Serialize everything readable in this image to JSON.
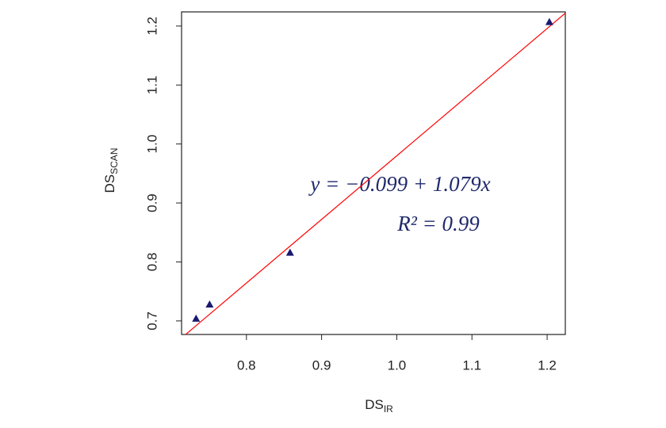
{
  "chart_data": {
    "type": "scatter",
    "x_label": {
      "text": "DS",
      "subscript": "IR"
    },
    "y_label": {
      "text": "DS",
      "subscript": "SCAN"
    },
    "series": [
      {
        "color": "#191970",
        "x": [
          0.733,
          0.751,
          0.858,
          1.203
        ],
        "values": [
          0.704,
          0.728,
          0.816,
          1.207
        ]
      }
    ],
    "fit": {
      "intercept": -0.099,
      "slope": 1.079,
      "color": "#ff0000"
    },
    "annotations": [
      "y = −0.099 + 1.079x",
      "R² = 0.99"
    ],
    "xlim": [
      0.7137,
      1.2242
    ],
    "ylim": [
      0.677,
      1.224
    ],
    "xticks": [
      0.8,
      0.9,
      {
        "value": 1,
        "label": "1.0"
      },
      1.1,
      1.2
    ],
    "yticks": [
      0.7,
      0.8,
      0.9,
      {
        "value": 1,
        "label": "1.0"
      },
      1.1,
      1.2
    ]
  }
}
